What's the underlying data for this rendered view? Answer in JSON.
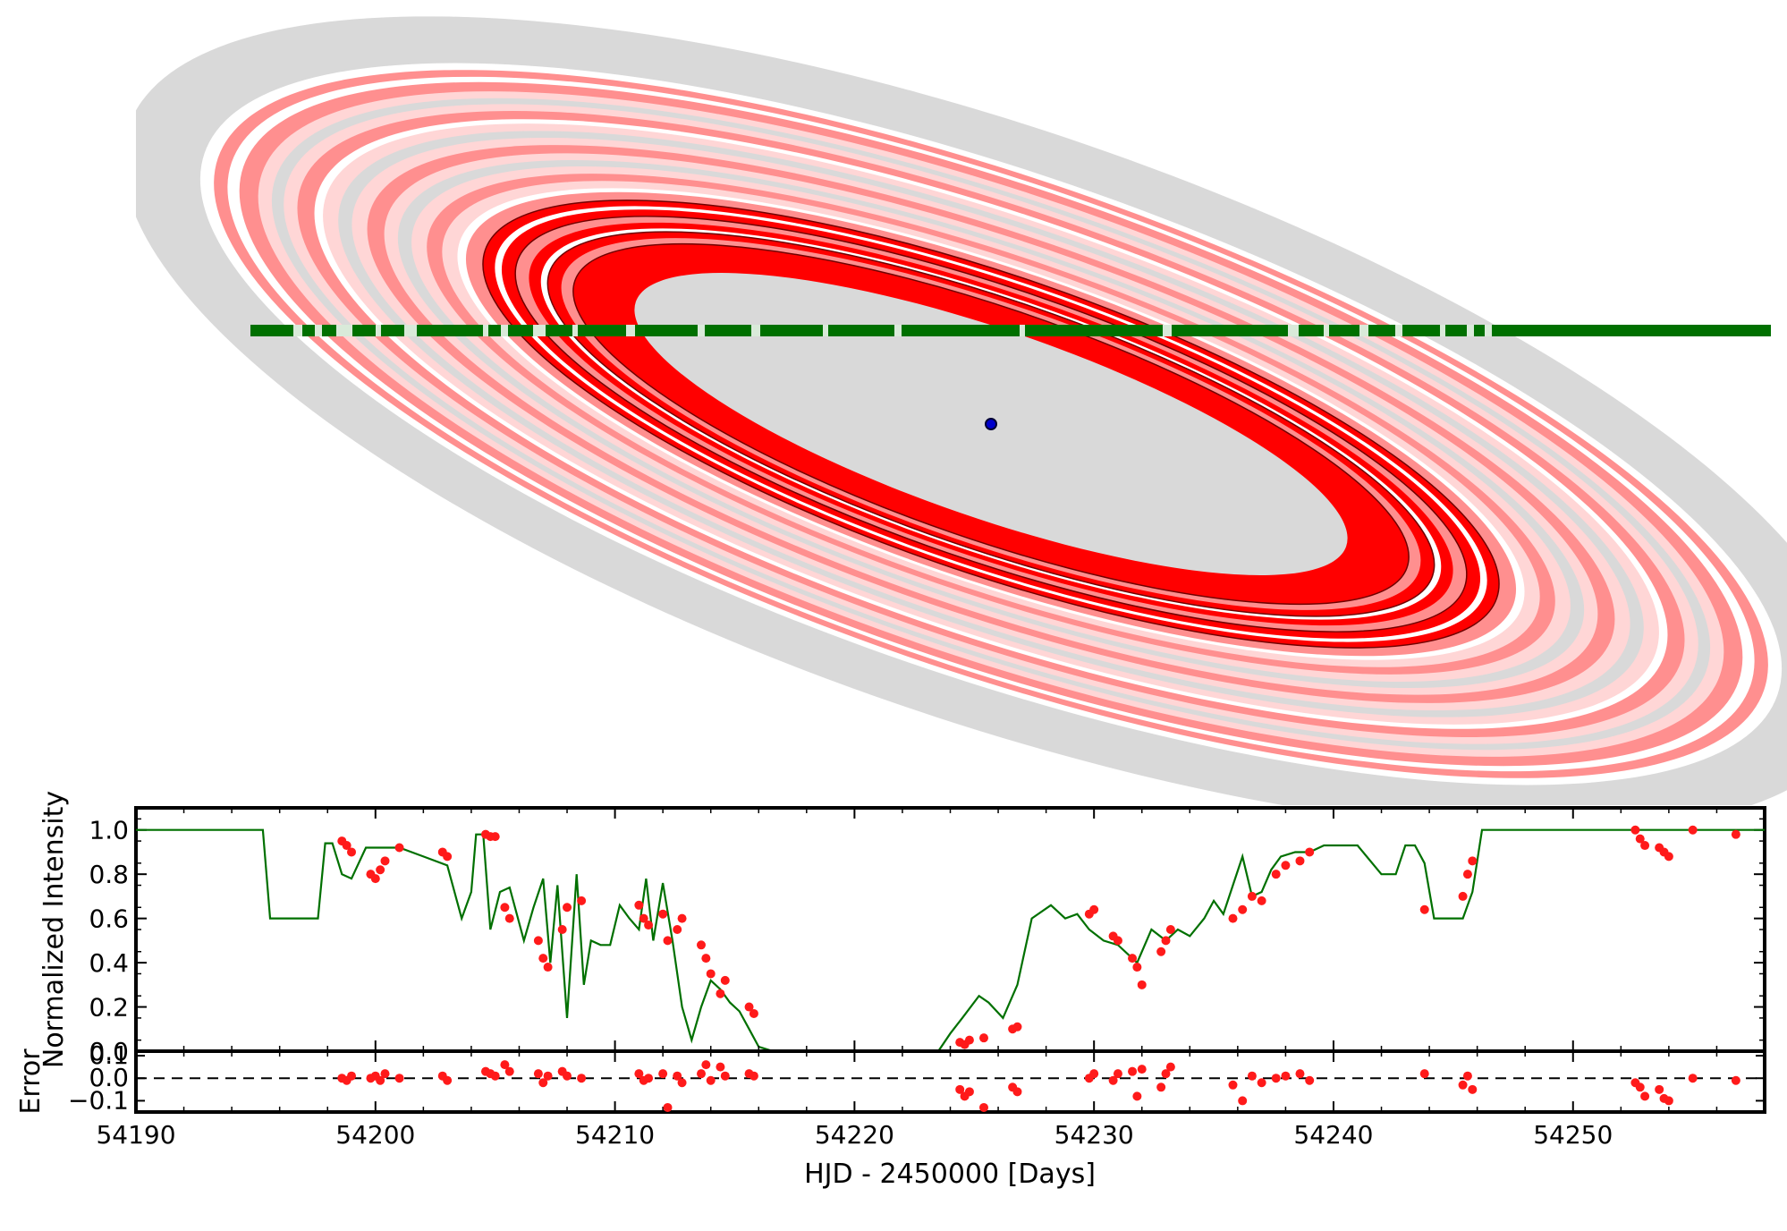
{
  "chart_data": [
    {
      "type": "diagram",
      "title": "",
      "description_colors": {
        "disk": "#d9d9d9",
        "ring_strong": "#ff0000",
        "ring_medium": "#ff8f8f",
        "ring_light": "#ffd6d6",
        "gap": "#ffffff",
        "path": "#007000",
        "star": "#0000cc"
      }
    },
    {
      "type": "line",
      "ylabel": "Normalized Intensity",
      "xlim": [
        54190,
        54258
      ],
      "ylim": [
        0,
        1.1
      ],
      "yticks": [
        "0.0",
        "0.2",
        "0.4",
        "0.6",
        "0.8",
        "1.0"
      ],
      "yticks_values": [
        0,
        0.2,
        0.4,
        0.6,
        0.8,
        1.0
      ],
      "series": [
        {
          "name": "model",
          "color": "#007000",
          "x": [
            54190,
            54195.3,
            54195.6,
            54197.6,
            54197.9,
            54198.2,
            54198.6,
            54199,
            54199.6,
            54200.2,
            54201,
            54202,
            54203,
            54203.6,
            54204,
            54204.2,
            54204.5,
            54204.8,
            54205.2,
            54205.6,
            54206.2,
            54206.6,
            54207,
            54207.3,
            54207.6,
            54208,
            54208.4,
            54208.7,
            54209,
            54209.4,
            54209.8,
            54210.2,
            54210.6,
            54211,
            54211.3,
            54211.6,
            54212,
            54212.4,
            54212.8,
            54213.2,
            54213.6,
            54214,
            54214.4,
            54214.8,
            54215.2,
            54215.6,
            54216,
            54216.6,
            54217.2,
            54220,
            54223.5,
            54224,
            54224.5,
            54225.2,
            54225.6,
            54226.2,
            54226.8,
            54227.4,
            54228.2,
            54228.8,
            54229.3,
            54229.8,
            54230.4,
            54231,
            54231.8,
            54232.4,
            54233,
            54233.5,
            54234,
            54234.6,
            54235,
            54235.4,
            54235.8,
            54236.2,
            54236.6,
            54237,
            54237.4,
            54237.8,
            54238.4,
            54239,
            54239.6,
            54240.2,
            54241,
            54242,
            54242.6,
            54243,
            54243.4,
            54243.8,
            54244.2,
            54244.6,
            54245.4,
            54245.8,
            54246.2,
            54258
          ],
          "y": [
            1,
            1,
            0.6,
            0.6,
            0.94,
            0.94,
            0.8,
            0.78,
            0.92,
            0.92,
            0.92,
            0.88,
            0.84,
            0.6,
            0.72,
            0.98,
            0.98,
            0.55,
            0.72,
            0.74,
            0.5,
            0.65,
            0.78,
            0.4,
            0.75,
            0.15,
            0.8,
            0.3,
            0.5,
            0.48,
            0.48,
            0.66,
            0.6,
            0.55,
            0.78,
            0.5,
            0.76,
            0.5,
            0.2,
            0.05,
            0.2,
            0.32,
            0.28,
            0.22,
            0.18,
            0.1,
            0.02,
            0,
            0,
            0,
            0,
            0.08,
            0.15,
            0.25,
            0.22,
            0.15,
            0.3,
            0.6,
            0.66,
            0.6,
            0.62,
            0.55,
            0.5,
            0.48,
            0.4,
            0.55,
            0.5,
            0.55,
            0.52,
            0.6,
            0.68,
            0.62,
            0.75,
            0.88,
            0.7,
            0.72,
            0.82,
            0.88,
            0.9,
            0.9,
            0.93,
            0.93,
            0.93,
            0.8,
            0.8,
            0.93,
            0.93,
            0.85,
            0.6,
            0.6,
            0.6,
            0.72,
            1,
            1
          ],
          "style": "line"
        },
        {
          "name": "observations",
          "color": "#ff1a1a",
          "style": "points",
          "x": [
            54198.6,
            54198.8,
            54199,
            54199.8,
            54200,
            54200.2,
            54200.4,
            54201,
            54202.8,
            54203,
            54204.6,
            54204.8,
            54205,
            54205.4,
            54205.6,
            54206.8,
            54207,
            54207.2,
            54207.8,
            54208,
            54208.6,
            54211,
            54211.2,
            54211.4,
            54212,
            54212.2,
            54212.6,
            54212.8,
            54213.6,
            54213.8,
            54214,
            54214.4,
            54214.6,
            54215.6,
            54215.8,
            54224.4,
            54224.6,
            54224.8,
            54225.4,
            54226.6,
            54226.8,
            54229.8,
            54230,
            54230.8,
            54231,
            54231.6,
            54231.8,
            54232,
            54232.8,
            54233,
            54233.2,
            54235.8,
            54236.2,
            54236.6,
            54237,
            54237.6,
            54238,
            54238.6,
            54239,
            54243.8,
            54245.4,
            54245.6,
            54245.8,
            54252.6,
            54252.8,
            54253,
            54253.6,
            54253.8,
            54254,
            54255,
            54256.8
          ],
          "y": [
            0.95,
            0.93,
            0.9,
            0.8,
            0.78,
            0.82,
            0.86,
            0.92,
            0.9,
            0.88,
            0.98,
            0.97,
            0.97,
            0.65,
            0.6,
            0.5,
            0.42,
            0.38,
            0.55,
            0.65,
            0.68,
            0.66,
            0.6,
            0.57,
            0.62,
            0.5,
            0.55,
            0.6,
            0.48,
            0.42,
            0.35,
            0.26,
            0.32,
            0.2,
            0.17,
            0.04,
            0.03,
            0.05,
            0.06,
            0.1,
            0.11,
            0.62,
            0.64,
            0.52,
            0.5,
            0.42,
            0.38,
            0.3,
            0.45,
            0.5,
            0.55,
            0.6,
            0.64,
            0.7,
            0.68,
            0.8,
            0.84,
            0.86,
            0.9,
            0.64,
            0.7,
            0.8,
            0.86,
            1,
            0.96,
            0.93,
            0.92,
            0.9,
            0.88,
            1,
            0.98
          ]
        }
      ]
    },
    {
      "type": "scatter",
      "ylabel": "Error",
      "xlabel": "HJD - 2450000 [Days]",
      "xlim": [
        54190,
        54258
      ],
      "ylim": [
        -0.15,
        0.12
      ],
      "yticks": [
        "0.1",
        "0.0",
        "−0.1"
      ],
      "yticks_values": [
        0.1,
        0.0,
        -0.1
      ],
      "xticks": [
        "54190",
        "54200",
        "54210",
        "54220",
        "54230",
        "54240",
        "54250"
      ],
      "xticks_values": [
        54190,
        54200,
        54210,
        54220,
        54230,
        54240,
        54250
      ],
      "zero_line": "dashed",
      "series": [
        {
          "name": "residuals",
          "color": "#ff1a1a",
          "x": [
            54198.6,
            54198.8,
            54199,
            54199.8,
            54200,
            54200.2,
            54200.4,
            54201,
            54202.8,
            54203,
            54204.6,
            54204.8,
            54205,
            54205.4,
            54205.6,
            54206.8,
            54207,
            54207.2,
            54207.8,
            54208,
            54208.6,
            54211,
            54211.2,
            54211.4,
            54212,
            54212.2,
            54212.6,
            54212.8,
            54213.6,
            54213.8,
            54214,
            54214.4,
            54214.6,
            54215.6,
            54215.8,
            54224.4,
            54224.6,
            54224.8,
            54225.4,
            54226.6,
            54226.8,
            54229.8,
            54230,
            54230.8,
            54231,
            54231.6,
            54231.8,
            54232,
            54232.8,
            54233,
            54233.2,
            54235.8,
            54236.2,
            54236.6,
            54237,
            54237.6,
            54238,
            54238.6,
            54239,
            54243.8,
            54245.4,
            54245.6,
            54245.8,
            54252.6,
            54252.8,
            54253,
            54253.6,
            54253.8,
            54254,
            54255,
            54256.8
          ],
          "y": [
            0,
            -0.01,
            0.01,
            0,
            0.01,
            -0.01,
            0.02,
            0,
            0.01,
            -0.01,
            0.03,
            0.02,
            0.01,
            0.06,
            0.03,
            0.02,
            -0.02,
            0.01,
            0.03,
            0.01,
            0,
            0.02,
            -0.01,
            0,
            0.02,
            -0.13,
            0.01,
            -0.02,
            0.02,
            0.06,
            -0.01,
            0.05,
            0.01,
            0.02,
            0.01,
            -0.05,
            -0.08,
            -0.06,
            -0.13,
            -0.04,
            -0.06,
            0,
            0.02,
            -0.01,
            0.02,
            0.03,
            -0.08,
            0.04,
            -0.04,
            0.02,
            0.05,
            -0.03,
            -0.1,
            0.01,
            -0.02,
            0,
            0.01,
            0.02,
            -0.01,
            0.02,
            -0.03,
            0.01,
            -0.05,
            -0.02,
            -0.04,
            -0.08,
            -0.05,
            -0.09,
            -0.1,
            0,
            -0.01
          ]
        }
      ]
    }
  ]
}
